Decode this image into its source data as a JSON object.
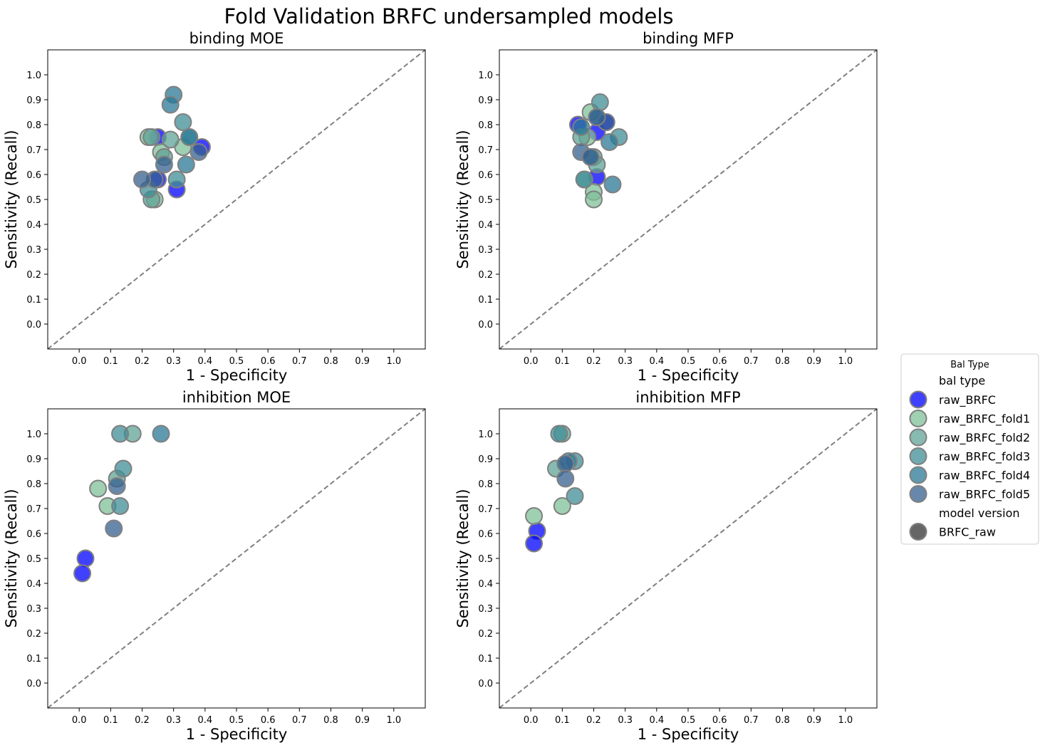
{
  "figure": {
    "title": "Fold Validation BRFC undersampled models"
  },
  "palette": {
    "raw_BRFC": "#0000ff",
    "raw_BRFC_fold1": "#7fc098",
    "raw_BRFC_fold2": "#5fa396",
    "raw_BRFC_fold3": "#3f8d96",
    "raw_BRFC_fold4": "#2a7896",
    "raw_BRFC_fold5": "#36608f",
    "marker_edge": "#808080",
    "diagonal": "#808080"
  },
  "legend": {
    "title": "Bal Type",
    "hue_header": "bal type",
    "style_header": "model version",
    "entries": [
      "raw_BRFC",
      "raw_BRFC_fold1",
      "raw_BRFC_fold2",
      "raw_BRFC_fold3",
      "raw_BRFC_fold4",
      "raw_BRFC_fold5"
    ],
    "style_entries": [
      {
        "label": "BRFC_raw",
        "color": "#555555"
      }
    ],
    "placement": "right-center"
  },
  "chart_data": [
    {
      "type": "scatter",
      "title": "binding MOE",
      "xlabel": "1 - Specificity",
      "ylabel": "Sensitivity (Recall)",
      "xlim": [
        -0.1,
        1.1
      ],
      "ylim": [
        -0.1,
        1.1
      ],
      "xticks": [
        "0.0",
        "0.1",
        "0.2",
        "0.3",
        "0.4",
        "0.5",
        "0.6",
        "0.7",
        "0.8",
        "0.9",
        "1.0"
      ],
      "yticks": [
        "0.0",
        "0.1",
        "0.2",
        "0.3",
        "0.4",
        "0.5",
        "0.6",
        "0.7",
        "0.8",
        "0.9",
        "1.0"
      ],
      "grid": false,
      "diagonal": true,
      "series": [
        {
          "name": "raw_BRFC",
          "points": [
            [
              0.25,
              0.75
            ],
            [
              0.39,
              0.71
            ],
            [
              0.31,
              0.54
            ],
            [
              0.25,
              0.58
            ]
          ]
        },
        {
          "name": "raw_BRFC_fold1",
          "points": [
            [
              0.22,
              0.75
            ],
            [
              0.33,
              0.71
            ],
            [
              0.26,
              0.69
            ],
            [
              0.24,
              0.5
            ]
          ]
        },
        {
          "name": "raw_BRFC_fold2",
          "points": [
            [
              0.23,
              0.75
            ],
            [
              0.29,
              0.74
            ],
            [
              0.27,
              0.67
            ],
            [
              0.23,
              0.5
            ]
          ]
        },
        {
          "name": "raw_BRFC_fold3",
          "points": [
            [
              0.33,
              0.81
            ],
            [
              0.35,
              0.75
            ],
            [
              0.31,
              0.58
            ],
            [
              0.22,
              0.54
            ]
          ]
        },
        {
          "name": "raw_BRFC_fold4",
          "points": [
            [
              0.3,
              0.92
            ],
            [
              0.29,
              0.88
            ],
            [
              0.35,
              0.75
            ],
            [
              0.34,
              0.64
            ]
          ]
        },
        {
          "name": "raw_BRFC_fold5",
          "points": [
            [
              0.38,
              0.69
            ],
            [
              0.27,
              0.64
            ],
            [
              0.24,
              0.58
            ],
            [
              0.2,
              0.58
            ]
          ]
        }
      ]
    },
    {
      "type": "scatter",
      "title": "binding MFP",
      "xlabel": "1 - Specificity",
      "ylabel": "Sensitivity (Recall)",
      "xlim": [
        -0.1,
        1.1
      ],
      "ylim": [
        -0.1,
        1.1
      ],
      "xticks": [
        "0.0",
        "0.1",
        "0.2",
        "0.3",
        "0.4",
        "0.5",
        "0.6",
        "0.7",
        "0.8",
        "0.9",
        "1.0"
      ],
      "yticks": [
        "0.0",
        "0.1",
        "0.2",
        "0.3",
        "0.4",
        "0.5",
        "0.6",
        "0.7",
        "0.8",
        "0.9",
        "1.0"
      ],
      "grid": false,
      "diagonal": true,
      "series": [
        {
          "name": "raw_BRFC",
          "points": [
            [
              0.15,
              0.8
            ],
            [
              0.21,
              0.77
            ],
            [
              0.21,
              0.59
            ],
            [
              0.24,
              0.81
            ]
          ]
        },
        {
          "name": "raw_BRFC_fold1",
          "points": [
            [
              0.19,
              0.85
            ],
            [
              0.18,
              0.75
            ],
            [
              0.2,
              0.53
            ],
            [
              0.2,
              0.5
            ]
          ]
        },
        {
          "name": "raw_BRFC_fold2",
          "points": [
            [
              0.16,
              0.75
            ],
            [
              0.17,
              0.58
            ],
            [
              0.2,
              0.67
            ],
            [
              0.21,
              0.64
            ]
          ]
        },
        {
          "name": "raw_BRFC_fold3",
          "points": [
            [
              0.22,
              0.89
            ],
            [
              0.28,
              0.75
            ],
            [
              0.19,
              0.67
            ],
            [
              0.17,
              0.58
            ]
          ]
        },
        {
          "name": "raw_BRFC_fold4",
          "points": [
            [
              0.21,
              0.83
            ],
            [
              0.25,
              0.73
            ],
            [
              0.26,
              0.56
            ],
            [
              0.16,
              0.79
            ]
          ]
        },
        {
          "name": "raw_BRFC_fold5",
          "points": [
            [
              0.24,
              0.81
            ],
            [
              0.21,
              0.83
            ],
            [
              0.16,
              0.69
            ],
            [
              0.19,
              0.67
            ]
          ]
        }
      ]
    },
    {
      "type": "scatter",
      "title": "inhibition MOE",
      "xlabel": "1 - Specificity",
      "ylabel": "Sensitivity (Recall)",
      "xlim": [
        -0.1,
        1.1
      ],
      "ylim": [
        -0.1,
        1.1
      ],
      "xticks": [
        "0.0",
        "0.1",
        "0.2",
        "0.3",
        "0.4",
        "0.5",
        "0.6",
        "0.7",
        "0.8",
        "0.9",
        "1.0"
      ],
      "yticks": [
        "0.0",
        "0.1",
        "0.2",
        "0.3",
        "0.4",
        "0.5",
        "0.6",
        "0.7",
        "0.8",
        "0.9",
        "1.0"
      ],
      "grid": false,
      "diagonal": true,
      "series": [
        {
          "name": "raw_BRFC",
          "points": [
            [
              0.02,
              0.5
            ],
            [
              0.01,
              0.44
            ]
          ]
        },
        {
          "name": "raw_BRFC_fold1",
          "points": [
            [
              0.06,
              0.78
            ],
            [
              0.09,
              0.71
            ]
          ]
        },
        {
          "name": "raw_BRFC_fold2",
          "points": [
            [
              0.17,
              1.0
            ],
            [
              0.12,
              0.82
            ]
          ]
        },
        {
          "name": "raw_BRFC_fold3",
          "points": [
            [
              0.13,
              1.0
            ],
            [
              0.14,
              0.86
            ],
            [
              0.13,
              0.71
            ]
          ]
        },
        {
          "name": "raw_BRFC_fold4",
          "points": [
            [
              0.26,
              1.0
            ]
          ]
        },
        {
          "name": "raw_BRFC_fold5",
          "points": [
            [
              0.12,
              0.79
            ],
            [
              0.11,
              0.62
            ]
          ]
        }
      ]
    },
    {
      "type": "scatter",
      "title": "inhibition MFP",
      "xlabel": "1 - Specificity",
      "ylabel": "Sensitivity (Recall)",
      "xlim": [
        -0.1,
        1.1
      ],
      "ylim": [
        -0.1,
        1.1
      ],
      "xticks": [
        "0.0",
        "0.1",
        "0.2",
        "0.3",
        "0.4",
        "0.5",
        "0.6",
        "0.7",
        "0.8",
        "0.9",
        "1.0"
      ],
      "yticks": [
        "0.0",
        "0.1",
        "0.2",
        "0.3",
        "0.4",
        "0.5",
        "0.6",
        "0.7",
        "0.8",
        "0.9",
        "1.0"
      ],
      "grid": false,
      "diagonal": true,
      "series": [
        {
          "name": "raw_BRFC",
          "points": [
            [
              0.02,
              0.61
            ],
            [
              0.01,
              0.56
            ]
          ]
        },
        {
          "name": "raw_BRFC_fold1",
          "points": [
            [
              0.01,
              0.67
            ],
            [
              0.1,
              0.71
            ]
          ]
        },
        {
          "name": "raw_BRFC_fold2",
          "points": [
            [
              0.1,
              1.0
            ],
            [
              0.08,
              0.86
            ]
          ]
        },
        {
          "name": "raw_BRFC_fold3",
          "points": [
            [
              0.09,
              1.0
            ],
            [
              0.14,
              0.89
            ],
            [
              0.14,
              0.75
            ]
          ]
        },
        {
          "name": "raw_BRFC_fold4",
          "points": [
            [
              0.12,
              0.89
            ]
          ]
        },
        {
          "name": "raw_BRFC_fold5",
          "points": [
            [
              0.11,
              0.88
            ],
            [
              0.11,
              0.82
            ]
          ]
        }
      ]
    }
  ]
}
